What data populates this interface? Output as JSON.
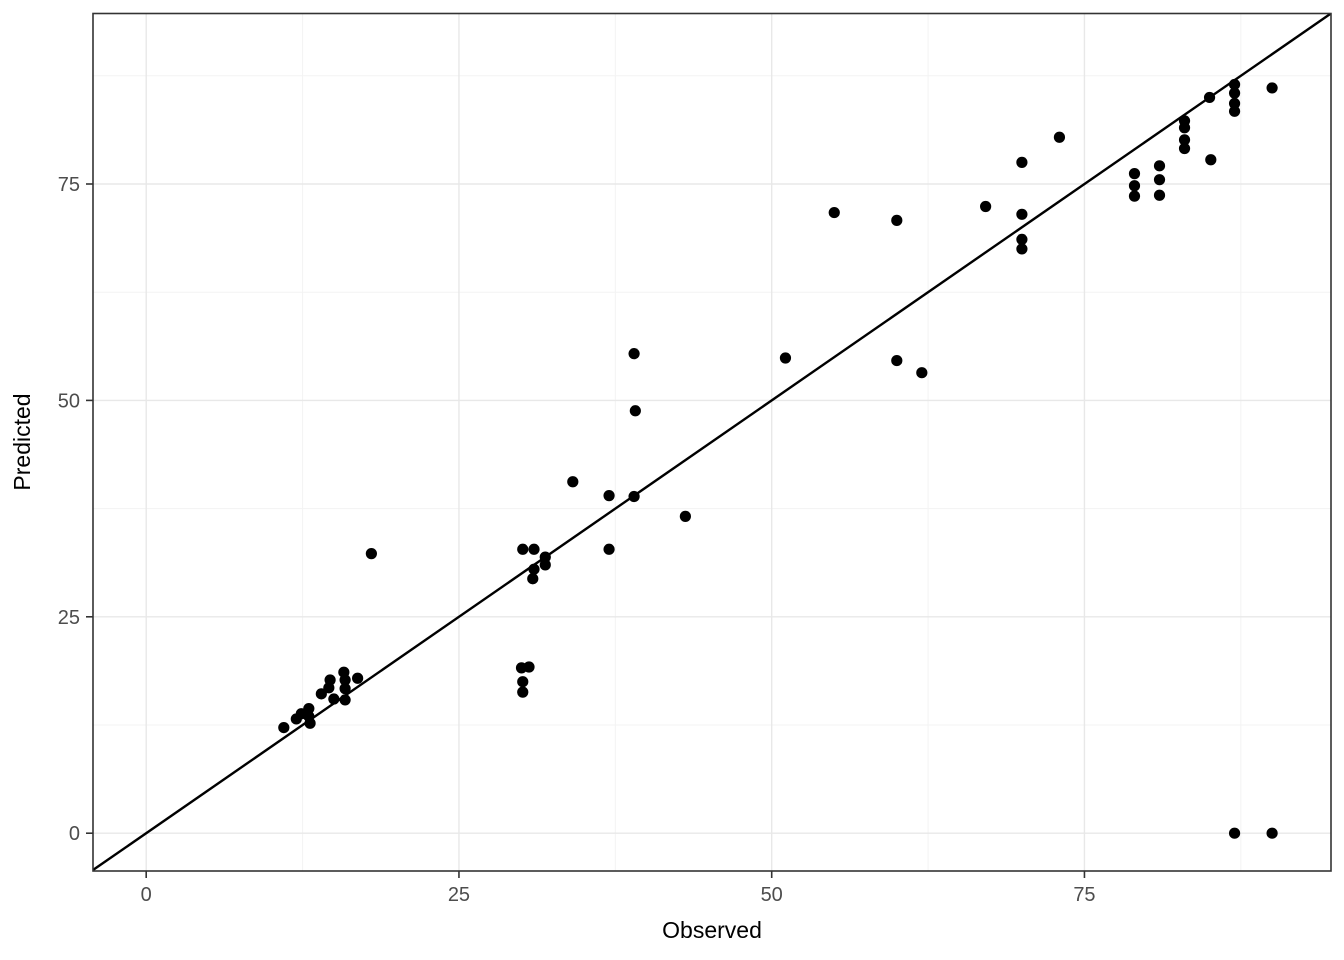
{
  "figure": {
    "kind": "ggplot-style scatter plot",
    "background_color": "#ffffff",
    "panel_background_color": "#ffffff",
    "panel_border_color": "#333333",
    "major_grid_color": "#e8e8e8",
    "minor_grid_color": "#f3f3f3",
    "tick_color": "#333333",
    "tick_label_color": "#4d4d4d",
    "point_color": "#000000",
    "line_color": "#000000"
  },
  "chart_data": {
    "type": "scatter",
    "title": "",
    "xlabel": "Observed",
    "ylabel": "Predicted",
    "x_tick_labels": [
      "0",
      "25",
      "50",
      "75"
    ],
    "y_tick_labels": [
      "0",
      "25",
      "50",
      "75"
    ],
    "x_ticks": [
      0,
      25,
      50,
      75
    ],
    "y_ticks": [
      0,
      25,
      50,
      75
    ],
    "x_minor_ticks": [
      12.5,
      37.5,
      62.5,
      87.5
    ],
    "y_minor_ticks": [
      12.5,
      37.5,
      62.5,
      87.5
    ],
    "xlim": [
      -4.3,
      94.7
    ],
    "ylim": [
      -4.4,
      94.7
    ],
    "grid": true,
    "legend": "none",
    "identity_line": {
      "present": true,
      "from": [
        -5,
        -5
      ],
      "to": [
        96,
        96
      ]
    },
    "points": [
      [
        11,
        12.2
      ],
      [
        12,
        13.2
      ],
      [
        12.4,
        13.8
      ],
      [
        13,
        14.4
      ],
      [
        13,
        13.5
      ],
      [
        13.1,
        12.7
      ],
      [
        14,
        16.1
      ],
      [
        14.6,
        16.8
      ],
      [
        14.7,
        17.7
      ],
      [
        15,
        15.5
      ],
      [
        15.8,
        18.6
      ],
      [
        15.9,
        17.7
      ],
      [
        15.9,
        16.7
      ],
      [
        15.9,
        15.4
      ],
      [
        16.9,
        17.9
      ],
      [
        18,
        32.3
      ],
      [
        30,
        19.1
      ],
      [
        30.6,
        19.2
      ],
      [
        30.1,
        17.5
      ],
      [
        30.1,
        16.3
      ],
      [
        30.1,
        32.8
      ],
      [
        31,
        32.8
      ],
      [
        31.9,
        31.9
      ],
      [
        31.9,
        31
      ],
      [
        31,
        30.5
      ],
      [
        30.9,
        29.4
      ],
      [
        34.1,
        40.6
      ],
      [
        37,
        39
      ],
      [
        39,
        38.9
      ],
      [
        37,
        32.8
      ],
      [
        39,
        55.4
      ],
      [
        39.1,
        48.8
      ],
      [
        43.1,
        36.6
      ],
      [
        51.1,
        54.9
      ],
      [
        55,
        71.7
      ],
      [
        60,
        70.8
      ],
      [
        60,
        54.6
      ],
      [
        62,
        53.2
      ],
      [
        67.1,
        72.4
      ],
      [
        70,
        77.5
      ],
      [
        70,
        71.5
      ],
      [
        70,
        68.6
      ],
      [
        70,
        67.5
      ],
      [
        73,
        80.4
      ],
      [
        79,
        76.2
      ],
      [
        79,
        74.8
      ],
      [
        79,
        73.6
      ],
      [
        81,
        77.1
      ],
      [
        81,
        75.5
      ],
      [
        81,
        73.7
      ],
      [
        83,
        82.3
      ],
      [
        83,
        81.5
      ],
      [
        83,
        80.1
      ],
      [
        83,
        79.1
      ],
      [
        85,
        85
      ],
      [
        85.1,
        77.8
      ],
      [
        87,
        86.5
      ],
      [
        87,
        85.5
      ],
      [
        87,
        84.3
      ],
      [
        87,
        83.4
      ],
      [
        90,
        86.1
      ],
      [
        87,
        0
      ],
      [
        90,
        0
      ]
    ]
  }
}
